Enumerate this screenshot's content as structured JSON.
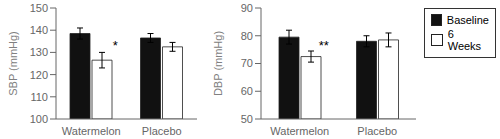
{
  "chart_data": [
    {
      "type": "bar",
      "ylabel": "SBP (mmHg)",
      "categories": [
        "Watermelon",
        "Placebo"
      ],
      "series": [
        {
          "name": "Baseline",
          "color": "#111111",
          "values": [
            138.5,
            136.5
          ],
          "errors": [
            2.5,
            2.0
          ]
        },
        {
          "name": "6 Weeks",
          "color": "#ffffff",
          "values": [
            126.5,
            132.5
          ],
          "errors": [
            3.5,
            2.0
          ]
        }
      ],
      "ylim": [
        100,
        150
      ],
      "yticks": [
        100,
        110,
        120,
        130,
        140,
        150
      ],
      "annotations": [
        {
          "text": "*",
          "category": "Watermelon",
          "y": 131
        }
      ]
    },
    {
      "type": "bar",
      "ylabel": "DBP (mmHg)",
      "categories": [
        "Watermelon",
        "Placebo"
      ],
      "series": [
        {
          "name": "Baseline",
          "color": "#111111",
          "values": [
            79.5,
            78.0
          ],
          "errors": [
            2.5,
            2.0
          ]
        },
        {
          "name": "6 Weeks",
          "color": "#ffffff",
          "values": [
            72.5,
            78.5
          ],
          "errors": [
            2.0,
            2.5
          ]
        }
      ],
      "ylim": [
        50,
        90
      ],
      "yticks": [
        50,
        60,
        70,
        80,
        90
      ],
      "annotations": [
        {
          "text": "**",
          "category": "Watermelon",
          "y": 75
        }
      ],
      "legend": "right"
    }
  ]
}
